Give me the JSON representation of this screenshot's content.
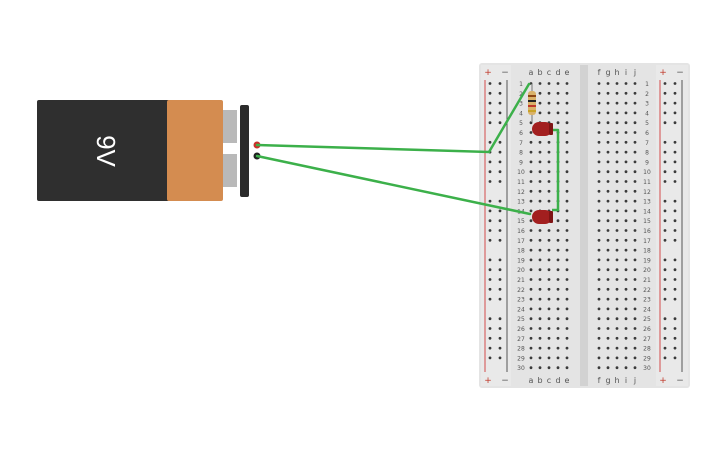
{
  "battery": {
    "label": "9V",
    "colors": {
      "body": "#2f2f2f",
      "cap": "#d48c50",
      "clip": "#2b2b2b",
      "terminal": "#b9b9b9"
    }
  },
  "breadboard": {
    "rows": 30,
    "columns_left": [
      "a",
      "b",
      "c",
      "d",
      "e"
    ],
    "columns_right": [
      "f",
      "g",
      "h",
      "i",
      "j"
    ],
    "rail_plus": "+",
    "rail_minus": "−",
    "colors": {
      "board": "#e4e4e4",
      "hole": "#3a3a3a",
      "plus_line": "#d24a4a",
      "minus_line": "#555555",
      "label": "#555555"
    }
  },
  "components": {
    "resistor": {
      "label": "resistor",
      "row_start": 1,
      "row_end": 4,
      "column": "b"
    },
    "led_1": {
      "color": "#a21f1f",
      "row": 6
    },
    "led_2": {
      "color": "#a21f1f",
      "row": 15
    }
  },
  "wires": {
    "color": "#3cb04a"
  },
  "terminals": {
    "positive_color": "#c8332b",
    "negative_color": "#222222"
  }
}
